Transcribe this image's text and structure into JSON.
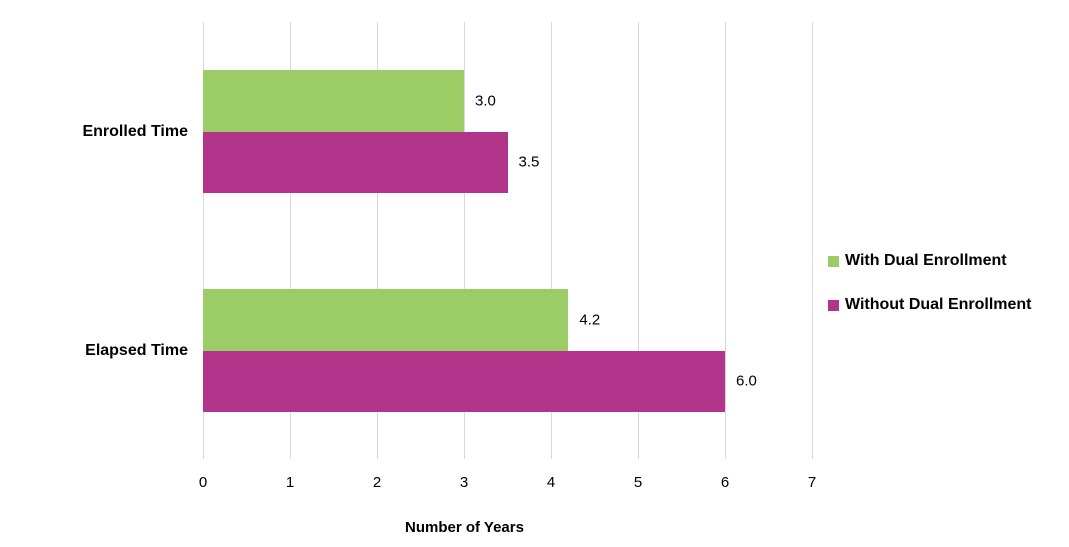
{
  "chart_data": {
    "type": "bar",
    "orientation": "horizontal",
    "title": "",
    "categories": [
      "Enrolled Time",
      "Elapsed Time"
    ],
    "series": [
      {
        "name": "With Dual Enrollment",
        "color": "#9CCC65",
        "values": [
          3.0,
          4.2
        ]
      },
      {
        "name": "Without Dual Enrollment",
        "color": "#B2348B",
        "values": [
          3.5,
          6.0
        ]
      }
    ],
    "value_labels": [
      [
        "3.0",
        "4.2"
      ],
      [
        "3.5",
        "6.0"
      ]
    ],
    "xlabel": "Number of Years",
    "ylabel": "",
    "xlim": [
      0,
      7
    ],
    "xticks": [
      "0",
      "1",
      "2",
      "3",
      "4",
      "5",
      "6",
      "7"
    ],
    "grid": "vertical",
    "gridline_color": "#d9d9d9",
    "legend_position": "right",
    "background_color": "#ffffff",
    "text_color": "#000000"
  }
}
